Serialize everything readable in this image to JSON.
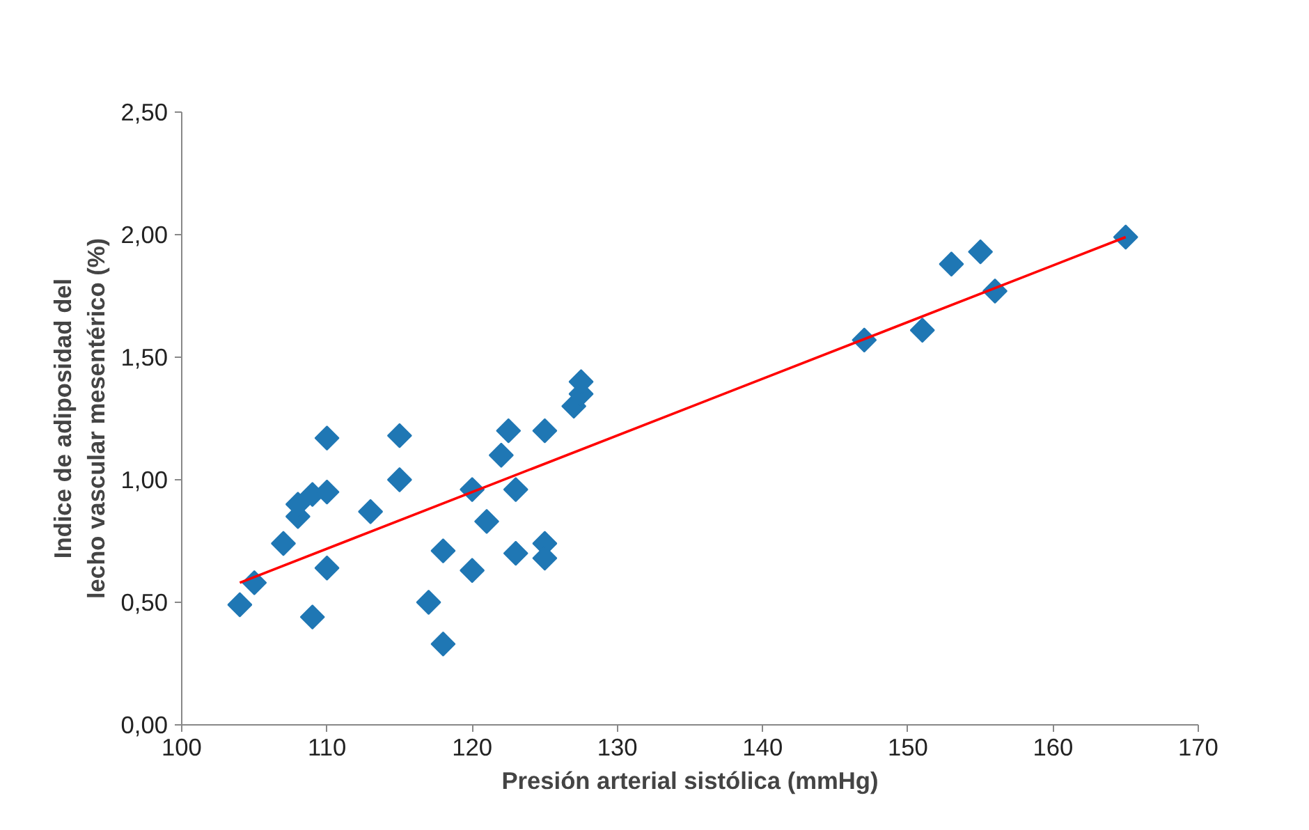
{
  "chart_data": {
    "type": "scatter",
    "xlabel": "Presión arterial sistólica (mmHg)",
    "ylabel": "Indice de adiposidad del\nlecho vascular mesentérico (%)",
    "xlim": [
      100,
      170
    ],
    "xticks": [
      100,
      110,
      120,
      130,
      140,
      150,
      160,
      170
    ],
    "ylim": [
      0,
      2.5
    ],
    "yticks": [
      {
        "value": 0,
        "label": "0,00"
      },
      {
        "value": 0.5,
        "label": "0,50"
      },
      {
        "value": 1,
        "label": "1,00"
      },
      {
        "value": 1.5,
        "label": "1,50"
      },
      {
        "value": 2,
        "label": "2,00"
      },
      {
        "value": 2.5,
        "label": "2,50"
      }
    ],
    "grid": false,
    "series": [
      {
        "marker": "diamond",
        "color": "#1f77b4",
        "x": [
          104,
          105,
          107,
          108,
          108,
          109,
          109,
          110,
          110,
          110,
          113,
          115,
          115,
          117,
          118,
          118,
          120,
          120,
          121,
          122,
          122.5,
          123,
          123,
          125,
          125,
          125,
          127,
          127.5,
          127.5,
          147,
          151,
          153,
          155,
          156,
          165
        ],
        "values": [
          0.49,
          0.58,
          0.74,
          0.85,
          0.9,
          0.94,
          0.44,
          0.95,
          1.17,
          0.64,
          0.87,
          1.18,
          1.0,
          0.5,
          0.71,
          0.33,
          0.96,
          0.63,
          0.83,
          1.1,
          1.2,
          0.96,
          0.7,
          1.2,
          0.74,
          0.68,
          1.3,
          1.35,
          1.4,
          1.57,
          1.61,
          1.88,
          1.93,
          1.77,
          1.99
        ]
      },
      {
        "type": "line",
        "color": "#ff0000",
        "line_style": "solid",
        "x": [
          104,
          165
        ],
        "values": [
          0.58,
          1.99
        ]
      }
    ]
  }
}
